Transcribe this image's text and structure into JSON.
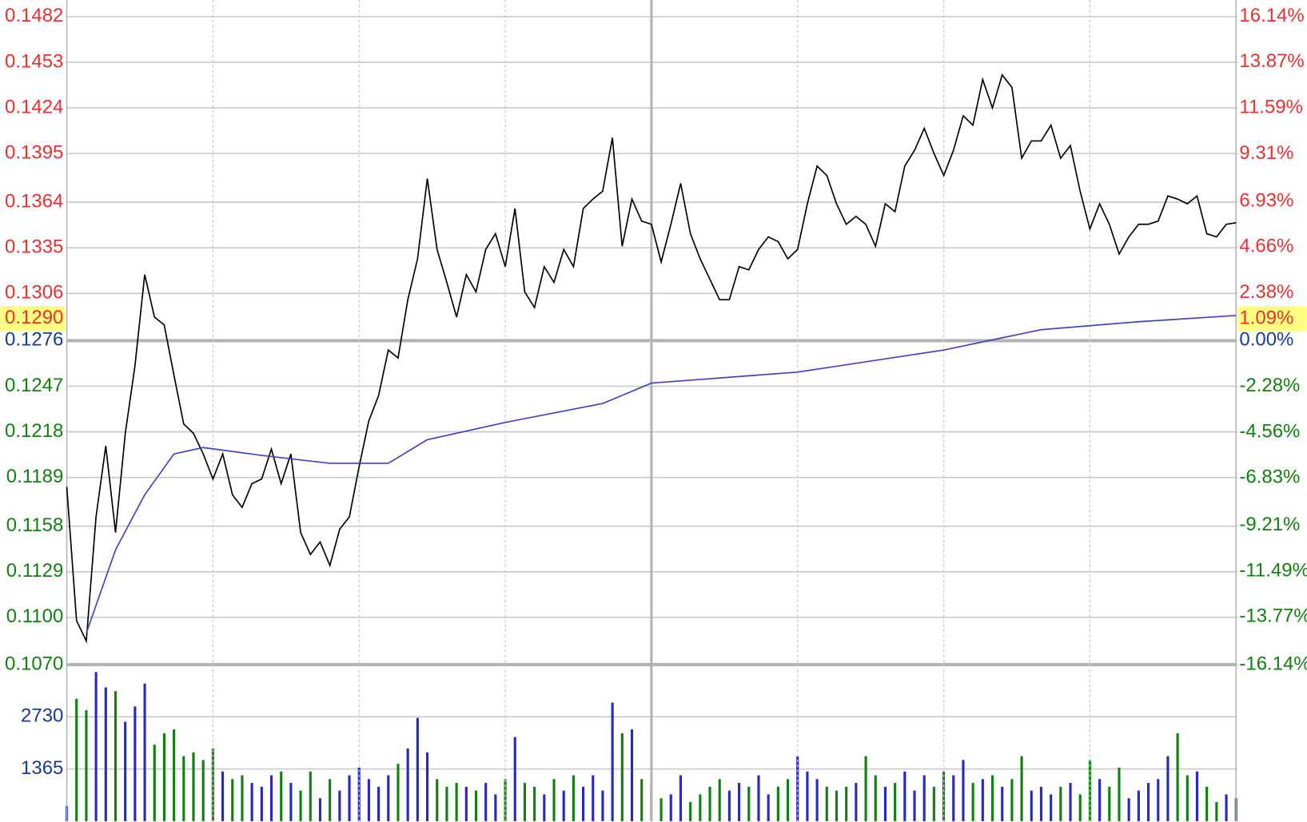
{
  "chart_data": [
    {
      "type": "line",
      "x": [
        0,
        1,
        2,
        3,
        4,
        5,
        6,
        7,
        8,
        9,
        10,
        11,
        12,
        13,
        14,
        15,
        16,
        17,
        18,
        19,
        20,
        21,
        22,
        23,
        24,
        25,
        26,
        27,
        28,
        29,
        30,
        31,
        32,
        33,
        34,
        35,
        36,
        37,
        38,
        39,
        40,
        41,
        42,
        43,
        44,
        45,
        46,
        47,
        48,
        49,
        50,
        51,
        52,
        53,
        54,
        55,
        56,
        57,
        58,
        59,
        60,
        61,
        62,
        63,
        64,
        65,
        66,
        67,
        68,
        69,
        70,
        71,
        72,
        73,
        74,
        75,
        76,
        77,
        78,
        79,
        80,
        81,
        82,
        83,
        84,
        85,
        86,
        87,
        88,
        89,
        90,
        91,
        92,
        93,
        94,
        95,
        96,
        97,
        98,
        99,
        100,
        101,
        102,
        103,
        104,
        105,
        106,
        107,
        108,
        109,
        110,
        111,
        112,
        113,
        114,
        115,
        116,
        117,
        118,
        119,
        120
      ],
      "series": [
        {
          "color": "#000000",
          "values": [
            0.1183,
            0.1098,
            0.1085,
            0.1164,
            0.1209,
            0.1154,
            0.1217,
            0.126,
            0.1318,
            0.1291,
            0.1286,
            0.1254,
            0.1223,
            0.1217,
            0.1204,
            0.1188,
            0.1204,
            0.1178,
            0.117,
            0.1185,
            0.1188,
            0.1207,
            0.1185,
            0.1204,
            0.1154,
            0.114,
            0.1148,
            0.1133,
            0.1156,
            0.1164,
            0.1196,
            0.1225,
            0.1241,
            0.127,
            0.1265,
            0.1302,
            0.1328,
            0.1379,
            0.1334,
            0.1313,
            0.1291,
            0.1318,
            0.1307,
            0.1334,
            0.1344,
            0.1323,
            0.136,
            0.1307,
            0.1297,
            0.1323,
            0.1313,
            0.1334,
            0.1323,
            0.136,
            0.1366,
            0.1371,
            0.1405,
            0.1336,
            0.1366,
            0.1352,
            0.135,
            0.1326,
            0.135,
            0.1376,
            0.1344,
            0.1328,
            0.1315,
            0.1302,
            0.1302,
            0.1323,
            0.1321,
            0.1334,
            0.1342,
            0.1339,
            0.1328,
            0.1334,
            0.1363,
            0.1387,
            0.1381,
            0.1363,
            0.135,
            0.1355,
            0.135,
            0.1336,
            0.1363,
            0.1358,
            0.1387,
            0.1397,
            0.1411,
            0.1395,
            0.1381,
            0.1397,
            0.1419,
            0.1413,
            0.1442,
            0.1424,
            0.1445,
            0.1437,
            0.1392,
            0.1403,
            0.1403,
            0.1413,
            0.1392,
            0.14,
            0.1371,
            0.1347,
            0.1363,
            0.135,
            0.1331,
            0.1342,
            0.135,
            0.135,
            0.1352,
            0.1368,
            0.1366,
            0.1363,
            0.1368,
            0.1344,
            0.1342,
            0.135,
            0.1351
          ]
        },
        {
          "color": "#4040c0",
          "x": [
            2,
            5,
            8,
            11,
            14,
            20,
            27,
            33,
            37,
            45,
            55,
            60,
            75,
            90,
            100,
            110,
            120
          ],
          "values": [
            0.109,
            0.1143,
            0.1178,
            0.1204,
            0.1208,
            0.1203,
            0.1198,
            0.1198,
            0.1213,
            0.1224,
            0.1236,
            0.1249,
            0.1256,
            0.127,
            0.1283,
            0.1288,
            0.1292
          ]
        }
      ],
      "xlim": [
        0,
        120
      ],
      "xticks": [
        15,
        30,
        45,
        60,
        75,
        90,
        105
      ],
      "ylim": [
        0.107,
        0.1482
      ],
      "yticks": [
        0.1482,
        0.1453,
        0.1424,
        0.1395,
        0.1364,
        0.1335,
        0.1306,
        0.1276,
        0.1247,
        0.1218,
        0.1189,
        0.1158,
        0.1129,
        {
          "value": 0.11,
          "label": "0.1100"
        },
        {
          "value": 0.107,
          "label": "0.1070"
        }
      ],
      "y2lim": [
        -16.14,
        16.14
      ],
      "y2ticks": [
        {
          "value": 16.14,
          "label": "16.14%"
        },
        {
          "value": 13.87,
          "label": "13.87%"
        },
        {
          "value": 11.59,
          "label": "11.59%"
        },
        {
          "value": 9.31,
          "label": "9.31%"
        },
        {
          "value": 6.93,
          "label": "6.93%"
        },
        {
          "value": 4.66,
          "label": "4.66%"
        },
        {
          "value": 2.38,
          "label": "2.38%"
        },
        {
          "value": 0,
          "label": "0.00%"
        },
        {
          "value": -2.28,
          "label": "-2.28%"
        },
        {
          "value": -4.56,
          "label": "-4.56%"
        },
        {
          "value": -6.83,
          "label": "-6.83%"
        },
        {
          "value": -9.21,
          "label": "-9.21%"
        },
        {
          "value": -11.49,
          "label": "-11.49%"
        },
        {
          "value": -13.77,
          "label": "-13.77%"
        },
        {
          "value": -16.14,
          "label": "-16.14%"
        }
      ],
      "highlight": {
        "y": {
          "value": 0.129,
          "label": "0.1290"
        },
        "y2": {
          "value": 1.09,
          "label": "1.09%"
        },
        "color": "#ffff80"
      },
      "grid": true,
      "up_color": "#e83030",
      "down_color": "#108010",
      "flat_color": "#1a3a9a"
    },
    {
      "type": "bar",
      "x": [
        0,
        1,
        2,
        3,
        4,
        5,
        6,
        7,
        8,
        9,
        10,
        11,
        12,
        13,
        14,
        15,
        16,
        17,
        18,
        19,
        20,
        21,
        22,
        23,
        24,
        25,
        26,
        27,
        28,
        29,
        30,
        31,
        32,
        33,
        34,
        35,
        36,
        37,
        38,
        39,
        40,
        41,
        42,
        43,
        44,
        45,
        46,
        47,
        48,
        49,
        50,
        51,
        52,
        53,
        54,
        55,
        56,
        57,
        58,
        59,
        60,
        61,
        62,
        63,
        64,
        65,
        66,
        67,
        68,
        69,
        70,
        71,
        72,
        73,
        74,
        75,
        76,
        77,
        78,
        79,
        80,
        81,
        82,
        83,
        84,
        85,
        86,
        87,
        88,
        89,
        90,
        91,
        92,
        93,
        94,
        95,
        96,
        97,
        98,
        99,
        100,
        101,
        102,
        103,
        104,
        105,
        106,
        107,
        108,
        109,
        110,
        111,
        112,
        113,
        114,
        115,
        116,
        117,
        118,
        119,
        120
      ],
      "values": [
        400,
        3200,
        2900,
        3900,
        3500,
        3400,
        2600,
        3000,
        3600,
        2000,
        2300,
        2400,
        1700,
        1800,
        1600,
        1900,
        1300,
        1100,
        1200,
        1000,
        900,
        1200,
        1300,
        1000,
        800,
        1300,
        600,
        1100,
        800,
        1200,
        1400,
        1100,
        900,
        1200,
        1500,
        1900,
        2700,
        1800,
        1100,
        900,
        1000,
        900,
        800,
        1000,
        700,
        1100,
        2200,
        1000,
        900,
        700,
        1100,
        800,
        1200,
        900,
        1200,
        800,
        3100,
        2300,
        2400,
        1100,
        900,
        600,
        700,
        1200,
        500,
        700,
        900,
        1100,
        800,
        1000,
        900,
        1200,
        700,
        900,
        1100,
        1700,
        1300,
        1100,
        900,
        800,
        900,
        1000,
        1700,
        1200,
        900,
        1000,
        1300,
        800,
        1200,
        900,
        1300,
        1200,
        1600,
        1000,
        1100,
        1200,
        900,
        1100,
        1700,
        800,
        900,
        700,
        900,
        1000,
        700,
        1600,
        1100,
        900,
        1400,
        600,
        800,
        1000,
        1100,
        1700,
        2300,
        1200,
        1300,
        900,
        500,
        700,
        600
      ],
      "xlim": [
        0,
        120
      ],
      "ylim": [
        0,
        4095
      ],
      "yticks": [
        2730,
        1365
      ],
      "up_color": "#2828c8",
      "down_color": "#108010",
      "tick_color": "#1a3a9a"
    }
  ]
}
